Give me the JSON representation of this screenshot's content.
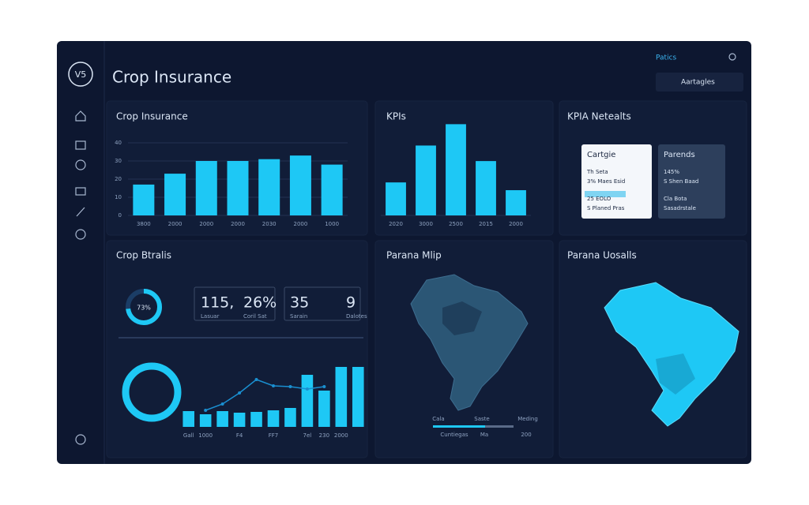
{
  "header": {
    "logo": "V5",
    "title": "Crop Insurance",
    "nav": "Patics",
    "search": "Aartagles"
  },
  "crop_insurance": {
    "title": "Crop Insurance",
    "chart": {
      "type": "bar",
      "categories": [
        "3800",
        "2000",
        "2000",
        "2000",
        "2030",
        "2000",
        "1000"
      ],
      "values": [
        17,
        23,
        30,
        30,
        31,
        33,
        28
      ],
      "ylim": [
        0,
        40
      ],
      "yticks": [
        0,
        10,
        20,
        30,
        40
      ],
      "color": "#1ec8f5",
      "grid": true
    }
  },
  "kpis": {
    "title": "KPIs",
    "chart": {
      "type": "bar",
      "categories": [
        "2020",
        "3000",
        "2500",
        "2015",
        "2000"
      ],
      "values": [
        17,
        36,
        47,
        28,
        13
      ],
      "ylim": [
        0,
        50
      ],
      "color": "#1ec8f5",
      "grid": true
    }
  },
  "kpia": {
    "title": "KPIA Netealts",
    "cards": [
      {
        "title": "Cartgie",
        "lines": [
          "Th Seta",
          "3% Maes Esid",
          "25 EOLO",
          "S Planed Pras"
        ]
      },
      {
        "title": "Parends",
        "lines": [
          "145%",
          "S Shen Baad",
          "Cla Bota",
          "Sasadrstale"
        ]
      }
    ]
  },
  "crop_details": {
    "title": "Crop Btralis",
    "gauge": {
      "value": 73,
      "label": "73%"
    },
    "stats": [
      {
        "items": [
          {
            "value": "115,",
            "caption": "Lasuar"
          },
          {
            "value": "26%",
            "caption": "Coril Sat"
          }
        ]
      },
      {
        "items": [
          {
            "value": "35",
            "caption": "Sarain"
          },
          {
            "value": "9",
            "caption": "Dalotes"
          }
        ]
      }
    ],
    "chart": {
      "type": "bar",
      "categories": [
        "Gall",
        "1000",
        null,
        "F4",
        null,
        "FF7",
        null,
        "7el",
        "230",
        "2000",
        null
      ],
      "ylim": [
        0,
        80
      ],
      "series": [
        {
          "color": "#1ec8f5",
          "values": [
            20,
            16,
            20,
            18,
            19,
            21,
            24,
            66,
            46,
            76,
            76
          ]
        },
        {
          "color": "#1a8fd0",
          "style": "line",
          "values": [
            null,
            21,
            29,
            43,
            60,
            52,
            51,
            48,
            51,
            null,
            null
          ]
        }
      ]
    }
  },
  "map1": {
    "title": "Parana Mlip",
    "legend": [
      "Cala",
      "Saste",
      "Meding"
    ],
    "footer": [
      "Cuntiegas",
      "Ma",
      "200"
    ]
  },
  "map2": {
    "title": "Parana Uosalls"
  }
}
